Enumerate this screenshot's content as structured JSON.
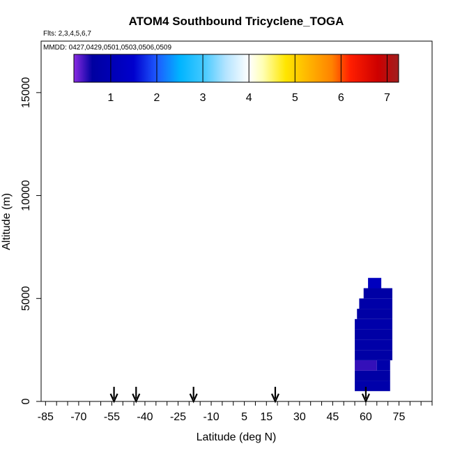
{
  "chart_data": {
    "type": "heatmap",
    "title": "ATOM4 Southbound Tricyclene_TOGA",
    "flights_note": "Flts: 2,3,4,5,6,7",
    "dates_note": "MMDD: 0427,0429,0501,0503,0506,0509",
    "xlabel": "Latitude (deg N)",
    "ylabel": "Altitude (m)",
    "xlim": [
      -87,
      90
    ],
    "ylim": [
      0,
      17500
    ],
    "x_ticks": [
      -85,
      -70,
      -55,
      -40,
      -25,
      -10,
      5,
      15,
      30,
      45,
      60,
      75
    ],
    "x_tick_labels": [
      "-85",
      "-70",
      "-55",
      "-40",
      "-25",
      "-10",
      "5",
      "15",
      "30",
      "45",
      "60",
      "75"
    ],
    "y_ticks": [
      0,
      5000,
      10000,
      15000
    ],
    "y_tick_labels": [
      "0",
      "5000",
      "10000",
      "15000"
    ],
    "colorbar": {
      "range": [
        0.2,
        7.25
      ],
      "ticks": [
        1,
        2,
        3,
        4,
        5,
        6,
        7
      ],
      "tick_labels": [
        "1",
        "2",
        "3",
        "4",
        "5",
        "6",
        "7"
      ],
      "stops": [
        {
          "v": 0.2,
          "color": "#8a2be2"
        },
        {
          "v": 0.6,
          "color": "#0000a0"
        },
        {
          "v": 1.5,
          "color": "#0000cd"
        },
        {
          "v": 2.0,
          "color": "#1e5aff"
        },
        {
          "v": 2.5,
          "color": "#00b4ff"
        },
        {
          "v": 3.0,
          "color": "#40c8ff"
        },
        {
          "v": 3.5,
          "color": "#b4e4ff"
        },
        {
          "v": 4.0,
          "color": "#ffffff"
        },
        {
          "v": 4.3,
          "color": "#ffffb4"
        },
        {
          "v": 4.8,
          "color": "#ffe600"
        },
        {
          "v": 5.3,
          "color": "#ffb400"
        },
        {
          "v": 5.8,
          "color": "#ff8200"
        },
        {
          "v": 6.2,
          "color": "#ff1e00"
        },
        {
          "v": 6.8,
          "color": "#cd0000"
        },
        {
          "v": 7.25,
          "color": "#a01e1e"
        }
      ]
    },
    "arrows_latitude": [
      -54,
      -44,
      -18,
      19,
      60
    ],
    "cells": [
      {
        "lat0": 55,
        "lat1": 71,
        "alt0": 500,
        "alt1": 1000,
        "value": 0.8
      },
      {
        "lat0": 55,
        "lat1": 71,
        "alt0": 1000,
        "alt1": 1500,
        "value": 0.7
      },
      {
        "lat0": 55,
        "lat1": 65,
        "alt0": 1500,
        "alt1": 2000,
        "value": 0.45
      },
      {
        "lat0": 65,
        "lat1": 71,
        "alt0": 1500,
        "alt1": 2000,
        "value": 0.8
      },
      {
        "lat0": 55,
        "lat1": 72,
        "alt0": 2000,
        "alt1": 2500,
        "value": 0.7
      },
      {
        "lat0": 55,
        "lat1": 72,
        "alt0": 2500,
        "alt1": 3000,
        "value": 0.75
      },
      {
        "lat0": 55,
        "lat1": 72,
        "alt0": 3000,
        "alt1": 3500,
        "value": 0.7
      },
      {
        "lat0": 55,
        "lat1": 72,
        "alt0": 3500,
        "alt1": 4000,
        "value": 0.8
      },
      {
        "lat0": 56,
        "lat1": 72,
        "alt0": 4000,
        "alt1": 4500,
        "value": 0.7
      },
      {
        "lat0": 57,
        "lat1": 72,
        "alt0": 4500,
        "alt1": 5000,
        "value": 0.75
      },
      {
        "lat0": 59,
        "lat1": 72,
        "alt0": 5000,
        "alt1": 5500,
        "value": 0.7
      },
      {
        "lat0": 61,
        "lat1": 67,
        "alt0": 5500,
        "alt1": 6000,
        "value": 1.2
      }
    ]
  }
}
